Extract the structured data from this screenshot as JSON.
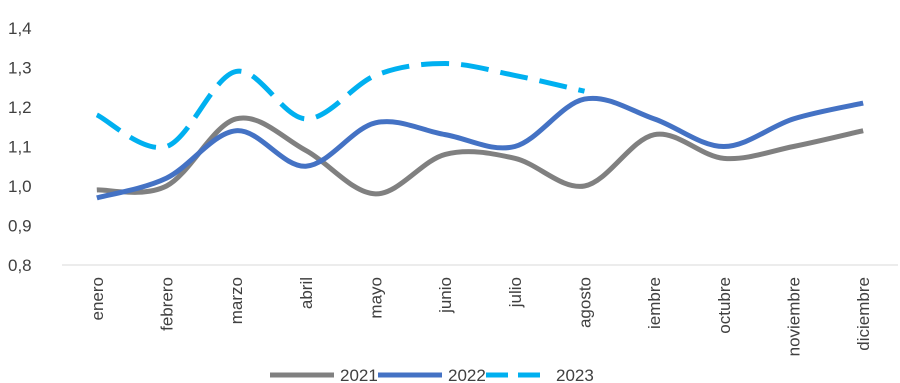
{
  "chart_data": {
    "type": "line",
    "categories": [
      "enero",
      "febrero",
      "marzo",
      "abril",
      "mayo",
      "junio",
      "julio",
      "agosto",
      "septiembre",
      "octubre",
      "noviembre",
      "diciembre"
    ],
    "category_labels_shown": [
      "enero",
      "febrero",
      "marzo",
      "abril",
      "mayo",
      "junio",
      "julio",
      "agosto",
      "iembre",
      "octubre",
      "noviembre",
      "diciembre"
    ],
    "series": [
      {
        "name": "2021",
        "color": "#808080",
        "dash": "solid",
        "values": [
          0.99,
          1.0,
          1.17,
          1.09,
          0.98,
          1.08,
          1.07,
          1.0,
          1.13,
          1.07,
          1.1,
          1.14
        ]
      },
      {
        "name": "2022",
        "color": "#4472C4",
        "dash": "solid",
        "values": [
          0.97,
          1.02,
          1.14,
          1.05,
          1.16,
          1.13,
          1.1,
          1.22,
          1.17,
          1.1,
          1.17,
          1.21
        ]
      },
      {
        "name": "2023",
        "color": "#00B0F0",
        "dash": "dashed",
        "values": [
          1.18,
          1.1,
          1.29,
          1.17,
          1.28,
          1.31,
          1.28,
          1.24,
          null,
          null,
          null,
          null
        ]
      }
    ],
    "yticks": [
      "0,8",
      "0,9",
      "1,0",
      "1,1",
      "1,2",
      "1,3",
      "1,4"
    ],
    "ylim": [
      0.8,
      1.4
    ],
    "grid": false,
    "legend": "bottom",
    "title": "",
    "xlabel": "",
    "ylabel": ""
  }
}
